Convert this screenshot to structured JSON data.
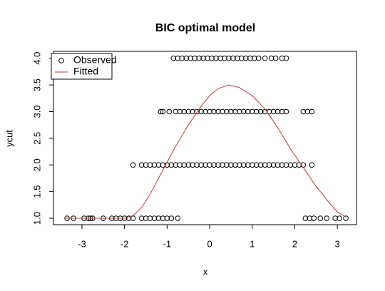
{
  "chart_data": {
    "type": "scatter",
    "title": "BIC optimal model",
    "x_label": "x",
    "y_label": "ycut",
    "xlim": [
      -3.67,
      3.45
    ],
    "ylim": [
      0.88,
      4.13
    ],
    "xticks": [
      -3,
      -2,
      -1,
      0,
      1,
      2,
      3
    ],
    "yticks": [
      {
        "value": 1,
        "label": "1.0"
      },
      {
        "value": 1.5,
        "label": "1.5"
      },
      {
        "value": 2,
        "label": "2.0"
      },
      {
        "value": 2.5,
        "label": "2.5"
      },
      {
        "value": 3,
        "label": "3.0"
      },
      {
        "value": 3.5,
        "label": "3.5"
      },
      {
        "value": 4,
        "label": "4.0"
      }
    ],
    "legend": "topleft",
    "series": [
      {
        "name": "Observed",
        "type": "scatter",
        "color": "#000000",
        "x": [
          -3.35,
          -3.2,
          -2.95,
          -2.85,
          -2.8,
          -2.75,
          -2.5,
          -2.3,
          -2.2,
          -2.1,
          -2.0,
          -1.9,
          -1.8,
          -1.6,
          -1.5,
          -1.4,
          -1.3,
          -1.2,
          -1.1,
          -1.0,
          -0.9,
          -0.75,
          2.25,
          2.35,
          2.45,
          2.6,
          2.75,
          2.95,
          3.05,
          3.2,
          -1.8,
          -1.6,
          -1.5,
          -1.4,
          -1.3,
          -1.2,
          -1.1,
          -1.0,
          -0.9,
          -0.8,
          -0.7,
          -0.6,
          -0.5,
          -0.4,
          -0.3,
          -0.2,
          -0.1,
          0,
          0.1,
          0.2,
          0.3,
          0.4,
          0.5,
          0.6,
          0.7,
          0.8,
          0.9,
          1.0,
          1.1,
          1.2,
          1.3,
          1.4,
          1.5,
          1.6,
          1.7,
          1.8,
          1.9,
          2.0,
          2.1,
          2.2,
          2.4,
          -1.15,
          -1.1,
          -0.95,
          -0.8,
          -0.7,
          -0.6,
          -0.5,
          -0.4,
          -0.3,
          -0.2,
          -0.1,
          0,
          0.1,
          0.2,
          0.3,
          0.4,
          0.5,
          0.6,
          0.7,
          0.8,
          0.9,
          1.0,
          1.1,
          1.2,
          1.3,
          1.4,
          1.5,
          1.6,
          1.7,
          1.8,
          2.2,
          2.3,
          2.4,
          -0.85,
          -0.75,
          -0.65,
          -0.55,
          -0.45,
          -0.35,
          -0.25,
          -0.15,
          -0.05,
          0.05,
          0.15,
          0.25,
          0.35,
          0.45,
          0.55,
          0.65,
          0.75,
          0.85,
          0.95,
          1.05,
          1.15,
          1.3,
          1.45,
          1.55,
          1.7,
          1.8
        ],
        "values": [
          1,
          1,
          1,
          1,
          1,
          1,
          1,
          1,
          1,
          1,
          1,
          1,
          1,
          1,
          1,
          1,
          1,
          1,
          1,
          1,
          1,
          1,
          1,
          1,
          1,
          1,
          1,
          1,
          1,
          1,
          2,
          2,
          2,
          2,
          2,
          2,
          2,
          2,
          2,
          2,
          2,
          2,
          2,
          2,
          2,
          2,
          2,
          2,
          2,
          2,
          2,
          2,
          2,
          2,
          2,
          2,
          2,
          2,
          2,
          2,
          2,
          2,
          2,
          2,
          2,
          2,
          2,
          2,
          2,
          2,
          2,
          3,
          3,
          3,
          3,
          3,
          3,
          3,
          3,
          3,
          3,
          3,
          3,
          3,
          3,
          3,
          3,
          3,
          3,
          3,
          3,
          3,
          3,
          3,
          3,
          3,
          3,
          3,
          3,
          3,
          3,
          3,
          3,
          3,
          4,
          4,
          4,
          4,
          4,
          4,
          4,
          4,
          4,
          4,
          4,
          4,
          4,
          4,
          4,
          4,
          4,
          4,
          4,
          4,
          4,
          4,
          4,
          4,
          4,
          4
        ]
      },
      {
        "name": "Fitted",
        "type": "line",
        "color": "#c0392b",
        "x": [
          -3.4,
          -2,
          -1.8,
          -1.6,
          -1.4,
          -1.2,
          -1,
          -0.8,
          -0.5,
          -0.2,
          0,
          0.2,
          0.45,
          0.7,
          1,
          1.3,
          1.6,
          1.9,
          2.2,
          2.5,
          2.8,
          3.0,
          3.2
        ],
        "values": [
          1.0,
          1.0,
          1.05,
          1.2,
          1.45,
          1.75,
          2.05,
          2.35,
          2.75,
          3.1,
          3.3,
          3.43,
          3.5,
          3.45,
          3.3,
          3.05,
          2.7,
          2.3,
          1.95,
          1.6,
          1.3,
          1.12,
          1.02
        ]
      }
    ]
  }
}
